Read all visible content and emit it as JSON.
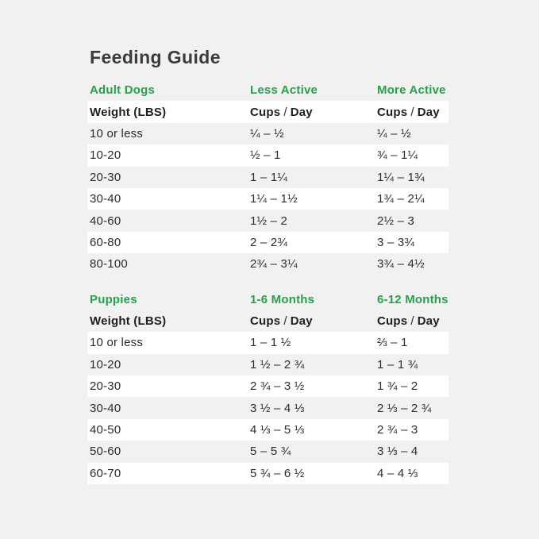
{
  "page": {
    "title": "Feeding Guide"
  },
  "colors": {
    "background": "#f1f1f2",
    "row_stripe_white": "#ffffff",
    "accent_green": "#28a04b",
    "text_dark": "#2c2c2c",
    "title_dark": "#3b3b3b"
  },
  "chart_data": [
    {
      "type": "table",
      "section_label": "Adult Dogs",
      "col2_label": "Less Active",
      "col3_label": "More Active",
      "weight_label": "Weight (LBS)",
      "cups_day": {
        "cups": "Cups",
        "slash": "/",
        "day": "Day"
      },
      "rows": [
        {
          "weight": "10 or less",
          "col2": "¼ – ½",
          "col3": "¼ – ½"
        },
        {
          "weight": "10-20",
          "col2": "½ – 1",
          "col3": "¾ – 1¼"
        },
        {
          "weight": "20-30",
          "col2": "1 – 1¼",
          "col3": "1¼ – 1¾"
        },
        {
          "weight": "30-40",
          "col2": "1¼ – 1½",
          "col3": "1¾ – 2¼"
        },
        {
          "weight": "40-60",
          "col2": "1½ – 2",
          "col3": "2½ – 3"
        },
        {
          "weight": "60-80",
          "col2": "2 – 2¾",
          "col3": "3 – 3¾"
        },
        {
          "weight": "80-100",
          "col2": "2¾ – 3¼",
          "col3": "3¾ – 4½"
        }
      ]
    },
    {
      "type": "table",
      "section_label": "Puppies",
      "col2_label": "1-6 Months",
      "col3_label": "6-12 Months",
      "weight_label": "Weight (LBS)",
      "cups_day": {
        "cups": "Cups",
        "slash": "/",
        "day": "Day"
      },
      "rows": [
        {
          "weight": "10 or less",
          "col2": "1 – 1 ½",
          "col3": "⅔ – 1"
        },
        {
          "weight": "10-20",
          "col2": "1 ½ – 2 ¾",
          "col3": "1 – 1 ¾"
        },
        {
          "weight": "20-30",
          "col2": "2 ¾ – 3 ½",
          "col3": "1 ¾ – 2"
        },
        {
          "weight": "30-40",
          "col2": "3 ½ – 4 ⅓",
          "col3": "2 ⅓ – 2 ¾"
        },
        {
          "weight": "40-50",
          "col2": "4 ⅓ – 5 ⅓",
          "col3": "2 ¾ – 3"
        },
        {
          "weight": "50-60",
          "col2": "5 – 5 ¾",
          "col3": "3 ⅓ – 4"
        },
        {
          "weight": "60-70",
          "col2": "5 ¾ – 6 ½",
          "col3": "4 – 4 ⅓"
        }
      ]
    }
  ]
}
